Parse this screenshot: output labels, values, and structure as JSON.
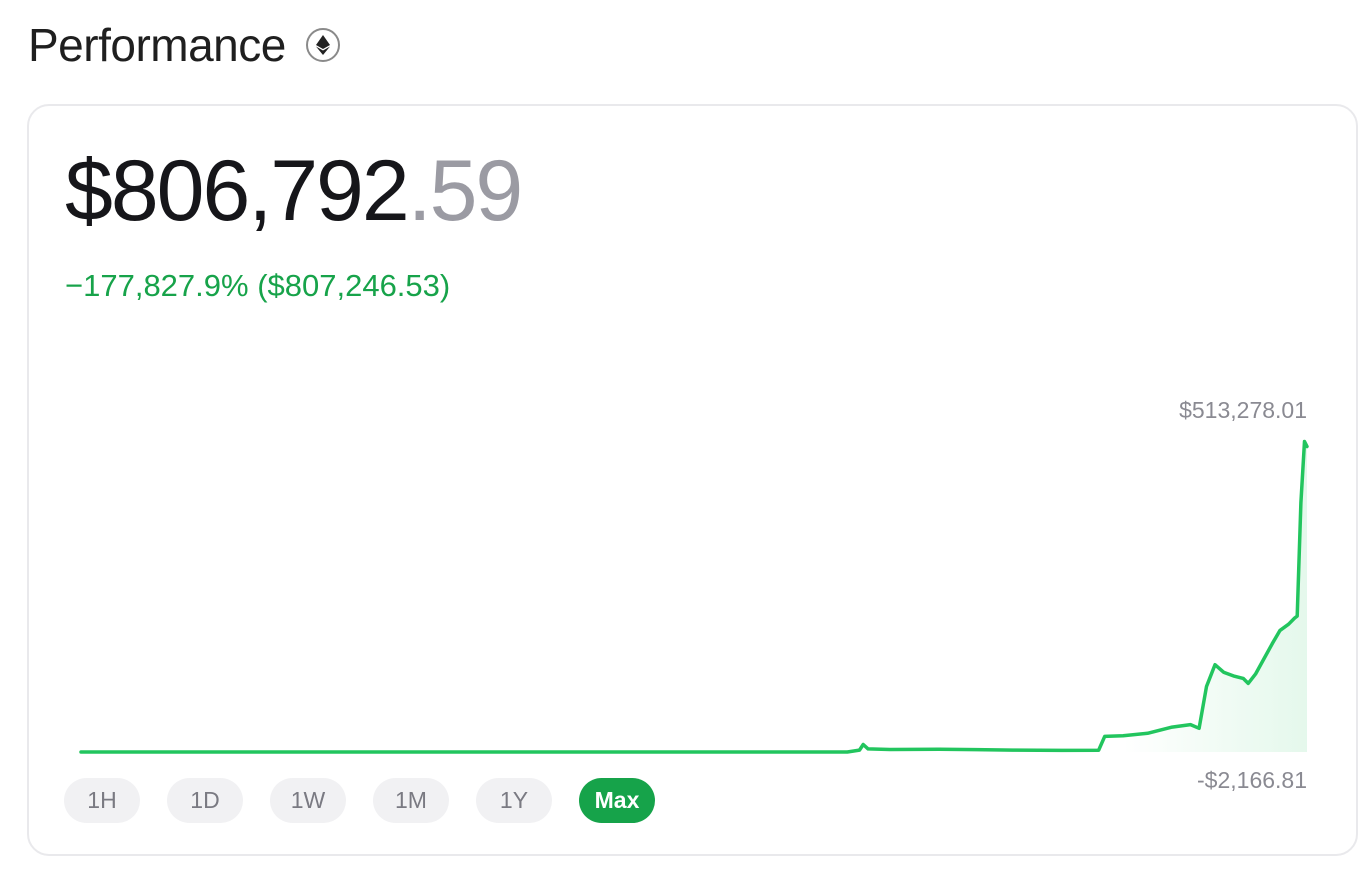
{
  "header": {
    "title": "Performance",
    "info_icon": "info-eth-icon"
  },
  "summary": {
    "value_integer": "$806,792",
    "value_decimal": ".59",
    "change_text": "−177,827.9% ($807,246.53)"
  },
  "colors": {
    "accent_green": "#16a34a",
    "line_green": "#22c55e",
    "muted_text": "#9b9ba3"
  },
  "chart_data": {
    "type": "line",
    "max_label": "$513,278.01",
    "min_label": "-$2,166.81",
    "y_range": [
      -2166.81,
      513278.01
    ],
    "x_label": "",
    "y_label": "",
    "grid": false,
    "series": [
      {
        "points": [
          [
            0.0,
            0
          ],
          [
            0.05,
            0
          ],
          [
            0.1,
            0
          ],
          [
            0.15,
            0
          ],
          [
            0.2,
            0
          ],
          [
            0.25,
            0
          ],
          [
            0.3,
            0
          ],
          [
            0.35,
            0
          ],
          [
            0.4,
            0
          ],
          [
            0.45,
            0
          ],
          [
            0.5,
            0
          ],
          [
            0.55,
            0
          ],
          [
            0.6,
            0
          ],
          [
            0.625,
            0
          ],
          [
            0.635,
            3000
          ],
          [
            0.638,
            12000
          ],
          [
            0.642,
            5000
          ],
          [
            0.66,
            4000
          ],
          [
            0.7,
            4500
          ],
          [
            0.73,
            3800
          ],
          [
            0.76,
            3000
          ],
          [
            0.8,
            2500
          ],
          [
            0.83,
            2700
          ],
          [
            0.835,
            25000
          ],
          [
            0.85,
            26000
          ],
          [
            0.87,
            30000
          ],
          [
            0.89,
            40000
          ],
          [
            0.905,
            44000
          ],
          [
            0.912,
            38000
          ],
          [
            0.918,
            105000
          ],
          [
            0.925,
            140000
          ],
          [
            0.932,
            128000
          ],
          [
            0.94,
            122000
          ],
          [
            0.948,
            118000
          ],
          [
            0.952,
            110000
          ],
          [
            0.958,
            125000
          ],
          [
            0.965,
            150000
          ],
          [
            0.972,
            175000
          ],
          [
            0.978,
            195000
          ],
          [
            0.985,
            205000
          ],
          [
            0.99,
            215000
          ],
          [
            0.992,
            218000
          ],
          [
            0.995,
            400000
          ],
          [
            0.998,
            498000
          ],
          [
            1.0,
            490000
          ]
        ]
      }
    ]
  },
  "ranges": [
    {
      "label": "1H",
      "active": false
    },
    {
      "label": "1D",
      "active": false
    },
    {
      "label": "1W",
      "active": false
    },
    {
      "label": "1M",
      "active": false
    },
    {
      "label": "1Y",
      "active": false
    },
    {
      "label": "Max",
      "active": true
    }
  ]
}
